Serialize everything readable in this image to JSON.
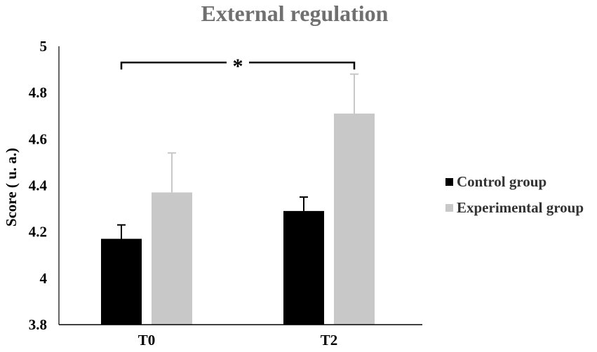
{
  "chart_data": {
    "type": "bar",
    "title": "External regulation",
    "xlabel": "",
    "ylabel": "Score ( u. a.)",
    "ylim": [
      3.8,
      5
    ],
    "yticks": [
      "3.8",
      "4",
      "4.2",
      "4.4",
      "4.6",
      "4.8",
      "5"
    ],
    "categories": [
      "T0",
      "T2"
    ],
    "series": [
      {
        "name": "Control group",
        "color": "#000000",
        "values": [
          4.17,
          4.29
        ],
        "errors": [
          0.06,
          0.06
        ]
      },
      {
        "name": "Experimental group",
        "color": "#c8c8c8",
        "values": [
          4.37,
          4.71
        ],
        "errors": [
          0.17,
          0.17
        ]
      }
    ],
    "annotations": [
      {
        "text": "*",
        "type": "significance-bracket",
        "from_category": "T0",
        "to_category": "T2",
        "y": 4.93
      }
    ],
    "grid": false,
    "legend": "right"
  }
}
